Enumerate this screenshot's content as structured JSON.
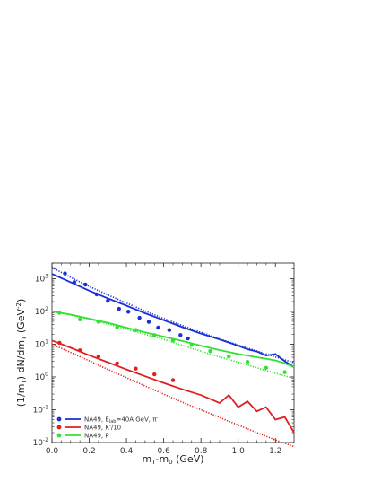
{
  "chart_data": {
    "type": "scatter",
    "title": "",
    "xlabel": "m_T-m_0 (GeV)",
    "ylabel": "(1/m_T) dN/dm_T (GeV^-2)",
    "xlim": [
      0.0,
      1.3
    ],
    "ylim": [
      0.01,
      3000
    ],
    "yscale": "log",
    "x_ticks": [
      0.0,
      0.2,
      0.4,
      0.6,
      0.8,
      1.0,
      1.2
    ],
    "x_tick_labels": [
      "0.0",
      "0.2",
      "0.4",
      "0.6",
      "0.8",
      "1.0",
      "1.2"
    ],
    "y_ticks": [
      0.01,
      0.1,
      1,
      10,
      100,
      1000
    ],
    "y_tick_labels": [
      {
        "base": "10",
        "exp": "-2"
      },
      {
        "base": "10",
        "exp": "-1"
      },
      {
        "base": "10",
        "exp": "0"
      },
      {
        "base": "10",
        "exp": "1"
      },
      {
        "base": "10",
        "exp": "2"
      },
      {
        "base": "10",
        "exp": "3"
      }
    ],
    "legend_position": "bottom-left",
    "series": [
      {
        "name": "NA49, E_lab=40A GeV, π⁻",
        "legend_main": "NA49, E",
        "legend_sub": "lab",
        "legend_rest": "=40A GeV, π",
        "legend_sup": "-",
        "color": "#1a2fd6",
        "points": {
          "x": [
            0.07,
            0.12,
            0.18,
            0.24,
            0.3,
            0.36,
            0.41,
            0.47,
            0.52,
            0.57,
            0.63,
            0.69,
            0.73
          ],
          "y": [
            1450,
            780,
            660,
            330,
            210,
            120,
            98,
            64,
            48,
            32,
            27,
            19,
            15
          ]
        },
        "line_solid": {
          "x": [
            0.0,
            0.1,
            0.2,
            0.3,
            0.4,
            0.5,
            0.6,
            0.7,
            0.8,
            0.9,
            1.0,
            1.05,
            1.1,
            1.15,
            1.2,
            1.25,
            1.3
          ],
          "y": [
            1400,
            780,
            430,
            250,
            150,
            88,
            54,
            33,
            21,
            14,
            9,
            7,
            6,
            4.5,
            5,
            3,
            2
          ]
        },
        "line_dotted": {
          "x": [
            0.0,
            0.1,
            0.2,
            0.3,
            0.4,
            0.5,
            0.6,
            0.7,
            0.8,
            0.9,
            1.0,
            1.1,
            1.2,
            1.3
          ],
          "y": [
            2200,
            1100,
            580,
            320,
            180,
            103,
            61,
            37,
            23,
            14.5,
            9.5,
            6.2,
            4.1,
            2.7
          ]
        }
      },
      {
        "name": "NA49, K⁻/10",
        "legend_main": "NA49, K",
        "legend_sub": "",
        "legend_rest": "/10",
        "legend_sup": "-",
        "color": "#e02020",
        "points": {
          "x": [
            0.04,
            0.15,
            0.25,
            0.35,
            0.45,
            0.55,
            0.65
          ],
          "y": [
            11,
            6.5,
            4.2,
            2.6,
            1.8,
            1.2,
            0.8
          ]
        },
        "line_solid": {
          "x": [
            0.0,
            0.1,
            0.2,
            0.3,
            0.4,
            0.5,
            0.6,
            0.7,
            0.8,
            0.9,
            0.95,
            1.0,
            1.05,
            1.1,
            1.15,
            1.2,
            1.25,
            1.3
          ],
          "y": [
            13,
            7.8,
            4.6,
            2.8,
            1.7,
            1.05,
            0.66,
            0.42,
            0.28,
            0.16,
            0.28,
            0.12,
            0.18,
            0.09,
            0.12,
            0.05,
            0.06,
            0.02
          ]
        },
        "line_dotted": {
          "x": [
            0.0,
            0.1,
            0.2,
            0.3,
            0.4,
            0.5,
            0.6,
            0.7,
            0.8,
            0.9,
            1.0,
            1.1,
            1.2,
            1.3
          ],
          "y": [
            10,
            5.6,
            3.1,
            1.7,
            0.95,
            0.53,
            0.3,
            0.17,
            0.1,
            0.058,
            0.034,
            0.02,
            0.012,
            0.0075
          ]
        }
      },
      {
        "name": "NA49, P",
        "legend_main": "NA49, P",
        "legend_sub": "",
        "legend_rest": "",
        "legend_sup": "",
        "color": "#33e033",
        "points": {
          "x": [
            0.04,
            0.15,
            0.25,
            0.35,
            0.45,
            0.55,
            0.65,
            0.75,
            0.85,
            0.95,
            1.05,
            1.15,
            1.25
          ],
          "y": [
            90,
            57,
            48,
            33,
            27,
            19,
            13,
            9.5,
            6.2,
            4.2,
            2.9,
            1.9,
            1.4
          ]
        },
        "line_solid": {
          "x": [
            0.0,
            0.1,
            0.2,
            0.3,
            0.4,
            0.5,
            0.6,
            0.7,
            0.8,
            0.9,
            1.0,
            1.05,
            1.1,
            1.15,
            1.2,
            1.25,
            1.3
          ],
          "y": [
            100,
            80,
            60,
            45,
            32,
            23,
            17,
            12.5,
            9,
            6.6,
            5,
            4.5,
            4,
            3.6,
            3.2,
            2.6,
            2
          ]
        },
        "line_dotted": {
          "x": [
            0.0,
            0.1,
            0.2,
            0.3,
            0.4,
            0.5,
            0.6,
            0.7,
            0.8,
            0.9,
            1.0,
            1.1,
            1.2,
            1.3
          ],
          "y": [
            100,
            78,
            58,
            41,
            29,
            20,
            14,
            9.2,
            6.1,
            4.1,
            2.8,
            1.9,
            1.3,
            0.9
          ]
        }
      }
    ]
  }
}
